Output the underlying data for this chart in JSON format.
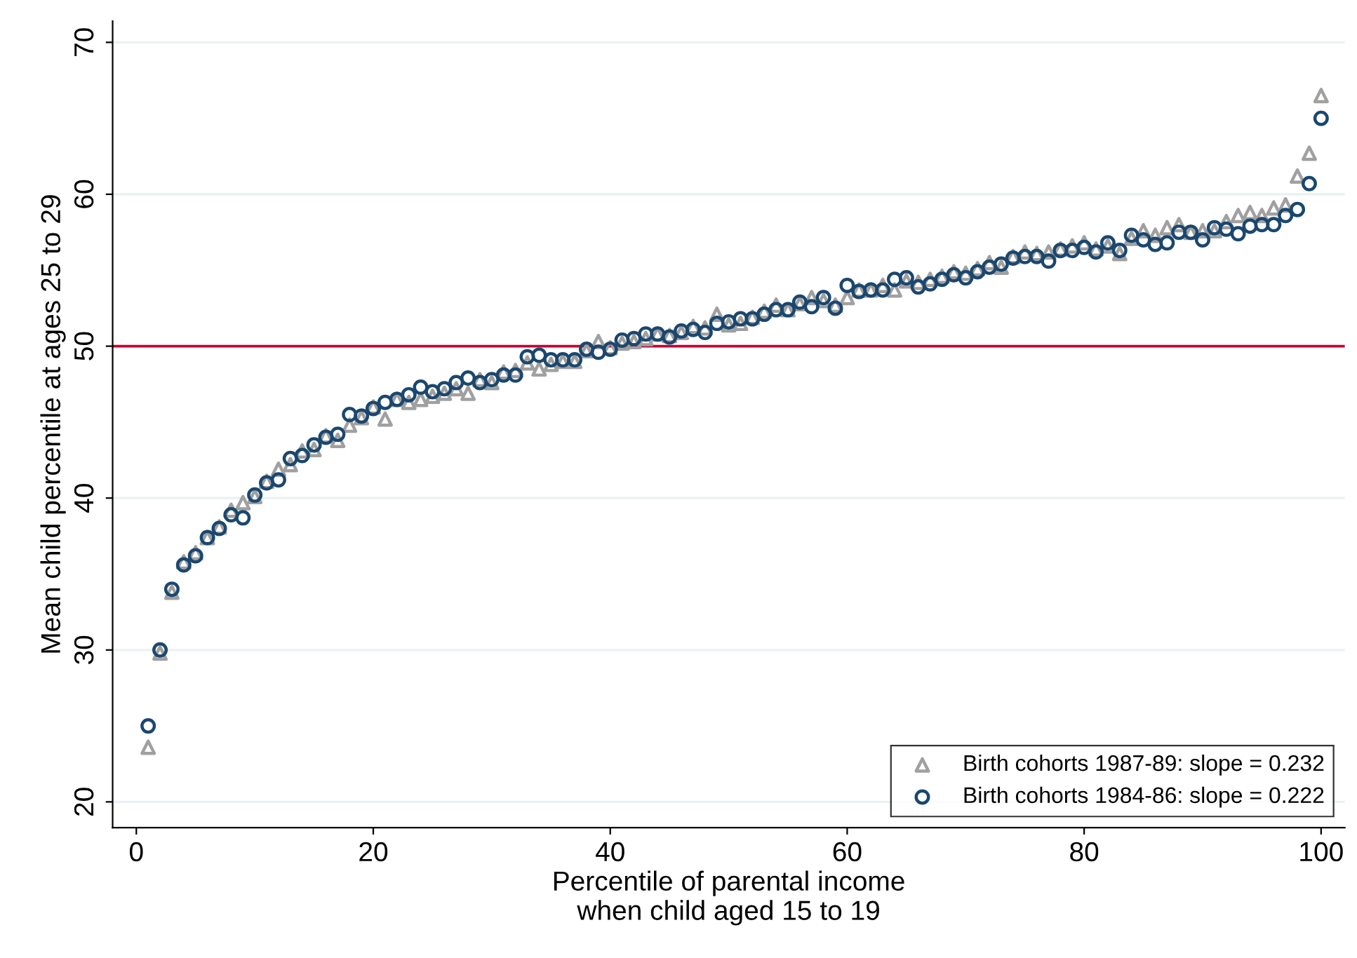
{
  "chart_data": {
    "type": "scatter",
    "xlabel": "Percentile of parental income\nwhen child aged 15 to 19",
    "ylabel": "Mean child percentile at ages 25 to 29",
    "x": [
      1,
      2,
      3,
      4,
      5,
      6,
      7,
      8,
      9,
      10,
      11,
      12,
      13,
      14,
      15,
      16,
      17,
      18,
      19,
      20,
      21,
      22,
      23,
      24,
      25,
      26,
      27,
      28,
      29,
      30,
      31,
      32,
      33,
      34,
      35,
      36,
      37,
      38,
      39,
      40,
      41,
      42,
      43,
      44,
      45,
      46,
      47,
      48,
      49,
      50,
      51,
      52,
      53,
      54,
      55,
      56,
      57,
      58,
      59,
      60,
      61,
      62,
      63,
      64,
      65,
      66,
      67,
      68,
      69,
      70,
      71,
      72,
      73,
      74,
      75,
      76,
      77,
      78,
      79,
      80,
      81,
      82,
      83,
      84,
      85,
      86,
      87,
      88,
      89,
      90,
      91,
      92,
      93,
      94,
      95,
      96,
      97,
      98,
      99,
      100
    ],
    "series": [
      {
        "name": "Birth cohorts 1987-89: slope = 0.232",
        "color": "#a0a0a0",
        "marker": "triangle",
        "values": [
          23.6,
          29.8,
          33.8,
          35.8,
          36.4,
          37.4,
          38.1,
          39.2,
          39.7,
          40.1,
          41.1,
          41.9,
          42.2,
          43.1,
          43.2,
          44.1,
          43.8,
          44.8,
          45.3,
          46.0,
          45.2,
          46.5,
          46.3,
          46.5,
          46.7,
          46.9,
          47.2,
          46.9,
          47.8,
          47.6,
          48.3,
          48.4,
          48.9,
          48.5,
          48.8,
          49.0,
          49.0,
          49.7,
          50.3,
          49.9,
          50.2,
          50.3,
          50.5,
          50.8,
          50.7,
          50.9,
          51.3,
          51.2,
          52.1,
          51.4,
          51.5,
          51.9,
          52.3,
          52.7,
          52.4,
          52.8,
          53.2,
          53.0,
          52.7,
          53.2,
          53.7,
          53.7,
          54.0,
          53.7,
          54.3,
          54.2,
          54.4,
          54.6,
          54.9,
          54.8,
          55.1,
          55.5,
          55.2,
          55.9,
          56.2,
          56.1,
          56.2,
          56.4,
          56.6,
          56.8,
          56.4,
          56.6,
          56.1,
          57.1,
          57.6,
          57.3,
          57.8,
          58.0,
          57.5,
          57.6,
          57.6,
          58.2,
          58.6,
          58.8,
          58.6,
          59.1,
          59.3,
          61.2,
          62.7,
          66.5
        ]
      },
      {
        "name": "Birth cohorts 1984-86: slope = 0.222",
        "color": "#1a476f",
        "marker": "circle",
        "values": [
          25.0,
          30.0,
          34.0,
          35.6,
          36.2,
          37.4,
          38.0,
          38.9,
          38.7,
          40.2,
          41.0,
          41.2,
          42.6,
          42.8,
          43.5,
          44.0,
          44.2,
          45.5,
          45.4,
          45.9,
          46.3,
          46.5,
          46.8,
          47.3,
          47.0,
          47.2,
          47.6,
          47.9,
          47.6,
          47.8,
          48.1,
          48.1,
          49.3,
          49.4,
          49.1,
          49.1,
          49.1,
          49.8,
          49.6,
          49.8,
          50.4,
          50.5,
          50.8,
          50.8,
          50.6,
          51.0,
          51.1,
          50.9,
          51.5,
          51.6,
          51.8,
          51.8,
          52.1,
          52.4,
          52.4,
          52.9,
          52.6,
          53.2,
          52.5,
          54.0,
          53.6,
          53.7,
          53.7,
          54.4,
          54.5,
          53.9,
          54.1,
          54.4,
          54.7,
          54.5,
          54.9,
          55.2,
          55.4,
          55.8,
          55.9,
          55.9,
          55.6,
          56.3,
          56.3,
          56.5,
          56.2,
          56.8,
          56.3,
          57.3,
          57.0,
          56.7,
          56.8,
          57.5,
          57.5,
          57.0,
          57.8,
          57.7,
          57.4,
          57.9,
          58.0,
          58.0,
          58.6,
          59.0,
          60.7,
          65.0
        ]
      }
    ],
    "xlim": [
      -2,
      102
    ],
    "xticks": [
      0,
      20,
      40,
      60,
      80,
      100
    ],
    "ylim": [
      18.3,
      71.4
    ],
    "yticks": [
      20,
      30,
      40,
      50,
      60,
      70
    ],
    "ref_lines": [
      {
        "axis": "y",
        "value": 50,
        "color": "#c10534"
      }
    ],
    "grid": "y",
    "legend": "bottom right"
  }
}
